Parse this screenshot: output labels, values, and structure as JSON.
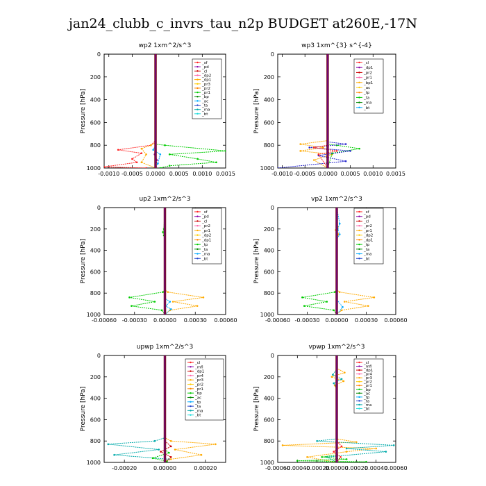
{
  "title": "jan24_clubb_c_invrs_tau_n2p  BUDGET at260E,-17N",
  "chart_data": [
    {
      "type": "line",
      "title": "wp2   1xm^2/s^3",
      "ylabel": "Pressure [hPa]",
      "xlim": [
        -0.0011,
        0.0015
      ],
      "ylim": [
        1000,
        0
      ],
      "xticks": [
        -0.001,
        -0.0005,
        0.0,
        0.0005,
        0.001,
        0.0015
      ],
      "xtick_labels": [
        "-0.0010",
        "-0.0005",
        "0.0000",
        "0.0005",
        "0.0010",
        "0.0015"
      ],
      "yticks": [
        0,
        200,
        400,
        600,
        800,
        1000
      ],
      "legend": [
        "_sf",
        "_pd",
        "_cl",
        "_dp2",
        "_dp1",
        "_pr3",
        "_pr2",
        "_pr1",
        "_bp",
        "_ac",
        "_ta",
        "_ma",
        "_bt"
      ],
      "series": [
        {
          "color": "#00cc00",
          "x": [
            0,
            0,
            0,
            0.0002,
            0.0015,
            0.0003,
            0.0009,
            0.0013,
            0.0003,
            0.0001
          ],
          "y": [
            0,
            700,
            790,
            800,
            850,
            880,
            920,
            950,
            980,
            1000
          ]
        },
        {
          "color": "#ff2222",
          "x": [
            0,
            0,
            -0.0001,
            -0.0008,
            -0.0003,
            -0.0005,
            -0.0004,
            -0.0011,
            -0.0002
          ],
          "y": [
            0,
            760,
            800,
            840,
            870,
            920,
            950,
            990,
            1000
          ]
        },
        {
          "color": "#ffaa00",
          "x": [
            0,
            0,
            -0.0001,
            -0.0003,
            -0.0002,
            -0.0003,
            0
          ],
          "y": [
            0,
            780,
            800,
            830,
            880,
            950,
            1000
          ]
        },
        {
          "color": "#00aaff",
          "x": [
            0,
            0,
            -5e-05,
            0.0001,
            5e-05,
            0
          ],
          "y": [
            0,
            800,
            840,
            880,
            960,
            1000
          ]
        },
        {
          "color": "#8800aa",
          "x": [
            0,
            0,
            -2e-05,
            3e-05,
            0
          ],
          "y": [
            0,
            850,
            880,
            930,
            1000
          ]
        }
      ]
    },
    {
      "type": "line",
      "title": "wp3   1xm^{3} s^{-4}",
      "ylabel": "Pressure [hPa]",
      "xlim": [
        -0.0011,
        0.0015
      ],
      "ylim": [
        1000,
        0
      ],
      "xticks": [
        -0.001,
        -0.0005,
        0.0,
        0.0005,
        0.001,
        0.0015
      ],
      "xtick_labels": [
        "-0.0010",
        "-0.0005",
        "0.0000",
        "0.0005",
        "0.0010",
        "0.0015"
      ],
      "yticks": [
        0,
        200,
        400,
        600,
        800,
        1000
      ],
      "legend": [
        "_cl",
        "_dp1",
        "_pr2",
        "_pr1",
        "_bp1",
        "_ac",
        "_tp",
        "_ta",
        "_ma",
        "_bt"
      ],
      "series": [
        {
          "color": "#ffaa00",
          "x": [
            0,
            0,
            -0.0006,
            -0.0001,
            -0.0006,
            0.0001,
            -0.0003,
            0
          ],
          "y": [
            0,
            760,
            790,
            820,
            850,
            880,
            930,
            1000
          ]
        },
        {
          "color": "#00cc00",
          "x": [
            0,
            0,
            0.0002,
            0.0007,
            0.0001,
            0
          ],
          "y": [
            0,
            790,
            800,
            830,
            870,
            1000
          ]
        },
        {
          "color": "#2222cc",
          "x": [
            0,
            0,
            0.0004,
            -0.0004,
            0.0005,
            -0.0002,
            0.0004,
            -0.0011
          ],
          "y": [
            0,
            770,
            790,
            820,
            850,
            890,
            940,
            1000
          ]
        },
        {
          "color": "#ff2222",
          "x": [
            0,
            0,
            -0.0003,
            0.0002,
            -0.0002,
            0
          ],
          "y": [
            0,
            800,
            820,
            850,
            880,
            1000
          ]
        }
      ]
    },
    {
      "type": "line",
      "title": "up2   1xm^2/s^3",
      "ylabel": "Pressure [hPa]",
      "xlim": [
        -0.0006,
        0.0006
      ],
      "ylim": [
        1000,
        0
      ],
      "xticks": [
        -0.0006,
        -0.0003,
        0.0,
        0.0003,
        0.0006
      ],
      "xtick_labels": [
        "-0.00060",
        "-0.00030",
        "0.00000",
        "0.00030",
        "0.00060"
      ],
      "yticks": [
        0,
        200,
        400,
        600,
        800,
        1000
      ],
      "legend": [
        "_sf",
        "_pd",
        "_cl",
        "_pr2",
        "_pr1",
        "_dp2",
        "_dp1",
        "_tp",
        "_ta",
        "_ma",
        "_bt"
      ],
      "series": [
        {
          "color": "#00cc00",
          "x": [
            0,
            -1e-05,
            -2e-05,
            -1e-05,
            0,
            0,
            -2e-05,
            -0.00035,
            -0.0001,
            -0.00033,
            -3e-05,
            0
          ],
          "y": [
            0,
            200,
            230,
            260,
            300,
            770,
            790,
            840,
            880,
            920,
            960,
            1000
          ]
        },
        {
          "color": "#ffaa00",
          "x": [
            0,
            0,
            3e-05,
            0.00038,
            8e-05,
            0.00032,
            5e-05,
            0
          ],
          "y": [
            0,
            770,
            790,
            840,
            880,
            920,
            960,
            1000
          ]
        },
        {
          "color": "#00aaff",
          "x": [
            0,
            0,
            5e-05,
            1e-05,
            6e-05,
            0
          ],
          "y": [
            0,
            850,
            880,
            920,
            950,
            1000
          ]
        },
        {
          "color": "#cc0000",
          "x": [
            0,
            0,
            0
          ],
          "y": [
            0,
            500,
            1000
          ]
        }
      ]
    },
    {
      "type": "line",
      "title": "vp2   1xm^2/s^3",
      "ylabel": "Pressure [hPa]",
      "xlim": [
        -0.0006,
        0.0006
      ],
      "ylim": [
        1000,
        0
      ],
      "xticks": [
        -0.0006,
        -0.0003,
        0.0,
        0.0003,
        0.0006
      ],
      "xtick_labels": [
        "-0.00060",
        "-0.00030",
        "0.00000",
        "0.00030",
        "0.00060"
      ],
      "yticks": [
        0,
        200,
        400,
        600,
        800,
        1000
      ],
      "legend": [
        "_sf",
        "_pd",
        "_cl",
        "_pr2",
        "_pr1",
        "_dp2",
        "_dp1",
        "_tp",
        "_ta",
        "_ma",
        "_bt"
      ],
      "series": [
        {
          "color": "#ffaa00",
          "x": [
            0,
            1e-05,
            -1e-05,
            2e-05,
            0,
            0,
            3e-05,
            0.00038,
            8e-05,
            0.00032,
            5e-05,
            0
          ],
          "y": [
            0,
            180,
            210,
            250,
            280,
            770,
            790,
            840,
            880,
            920,
            960,
            1000
          ]
        },
        {
          "color": "#00cc00",
          "x": [
            0,
            0,
            -2e-05,
            -0.00035,
            -0.0001,
            -0.00033,
            -3e-05,
            0
          ],
          "y": [
            0,
            770,
            790,
            840,
            880,
            920,
            960,
            1000
          ]
        },
        {
          "color": "#00aaff",
          "x": [
            0,
            3e-05,
            1e-05,
            3e-05,
            0,
            0,
            6e-05,
            0
          ],
          "y": [
            0,
            150,
            200,
            250,
            300,
            860,
            930,
            1000
          ]
        },
        {
          "color": "#cc0000",
          "x": [
            0,
            0,
            0
          ],
          "y": [
            0,
            500,
            1000
          ]
        }
      ]
    },
    {
      "type": "line",
      "title": "upwp   1xm^2/s^3",
      "ylabel": "Pressure [hPa]",
      "xlim": [
        -0.0003,
        0.0003
      ],
      "ylim": [
        1000,
        0
      ],
      "xticks": [
        -0.0002,
        0.0,
        0.0002
      ],
      "xtick_labels": [
        "-0.00020",
        "0.00000",
        "0.00020"
      ],
      "yticks": [
        0,
        200,
        400,
        600,
        800,
        1000
      ],
      "legend": [
        "_cl",
        "_mfl",
        "_dp1",
        "_pr4",
        "_pr3",
        "_pr2",
        "_pr1",
        "_bp",
        "_ac",
        "_tp",
        "_ta",
        "_ma",
        "_bt"
      ],
      "series": [
        {
          "color": "#00aaaa",
          "x": [
            0,
            0,
            -5e-05,
            -0.00028,
            -3e-05,
            -0.00025,
            2e-05,
            0
          ],
          "y": [
            0,
            770,
            800,
            830,
            880,
            930,
            970,
            1000
          ]
        },
        {
          "color": "#ffaa00",
          "x": [
            0,
            0,
            3e-05,
            0.00025,
            5e-05,
            0.00018,
            3e-05,
            0
          ],
          "y": [
            0,
            770,
            800,
            830,
            880,
            930,
            970,
            1000
          ]
        },
        {
          "color": "#00cc00",
          "x": [
            0,
            0,
            2e-05,
            -6e-05,
            1e-05,
            0
          ],
          "y": [
            0,
            880,
            910,
            960,
            990,
            1000
          ]
        },
        {
          "color": "#cc0000",
          "x": [
            0,
            0,
            3e-05,
            -2e-05,
            3e-05,
            0
          ],
          "y": [
            0,
            800,
            850,
            900,
            950,
            1000
          ]
        }
      ]
    },
    {
      "type": "line",
      "title": "vpwp   1xm^2/s^3",
      "ylabel": "Pressure [hPa]",
      "xlim": [
        -0.0006,
        0.0006
      ],
      "ylim": [
        1000,
        0
      ],
      "xticks": [
        -0.0006,
        -0.0004,
        -0.0002,
        0.0,
        0.0002,
        0.0004,
        0.0006
      ],
      "xtick_labels": [
        "-0.00060",
        "-0.00040",
        "-0.00020",
        "0.00000",
        "0.00020",
        "0.00040",
        "0.00060"
      ],
      "yticks": [
        0,
        200,
        400,
        600,
        800,
        1000
      ],
      "legend": [
        "_cl",
        "_mfl",
        "_dp1",
        "_pr4",
        "_pr3",
        "_pr2",
        "_pr1",
        "_bp",
        "_ac",
        "_tp",
        "_ta",
        "_ma",
        "_bt"
      ],
      "series": [
        {
          "color": "#ffaa00",
          "x": [
            0,
            0,
            8e-05,
            -5e-05,
            7e-05,
            -2e-05,
            0,
            0,
            0.0002,
            -0.00055,
            0.0004,
            0.0001,
            -0.0003,
            0
          ],
          "y": [
            0,
            120,
            160,
            200,
            240,
            280,
            320,
            780,
            810,
            840,
            870,
            900,
            950,
            1000
          ]
        },
        {
          "color": "#00aaaa",
          "x": [
            0,
            0,
            -4e-05,
            5e-05,
            -3e-05,
            0,
            0,
            -0.0002,
            0.00058,
            0.0001,
            0.0005,
            -0.0001,
            0
          ],
          "y": [
            0,
            130,
            180,
            220,
            260,
            300,
            780,
            800,
            840,
            870,
            900,
            950,
            1000
          ]
        },
        {
          "color": "#00cc00",
          "x": [
            0,
            0,
            -0.00015,
            0.0001,
            -0.0004,
            0.0003,
            -0.0001
          ],
          "y": [
            0,
            930,
            950,
            970,
            985,
            995,
            1000
          ]
        },
        {
          "color": "#ff2222",
          "x": [
            0,
            0,
            5e-05,
            -3e-05,
            4e-05,
            0
          ],
          "y": [
            0,
            800,
            850,
            900,
            950,
            1000
          ]
        }
      ]
    }
  ]
}
